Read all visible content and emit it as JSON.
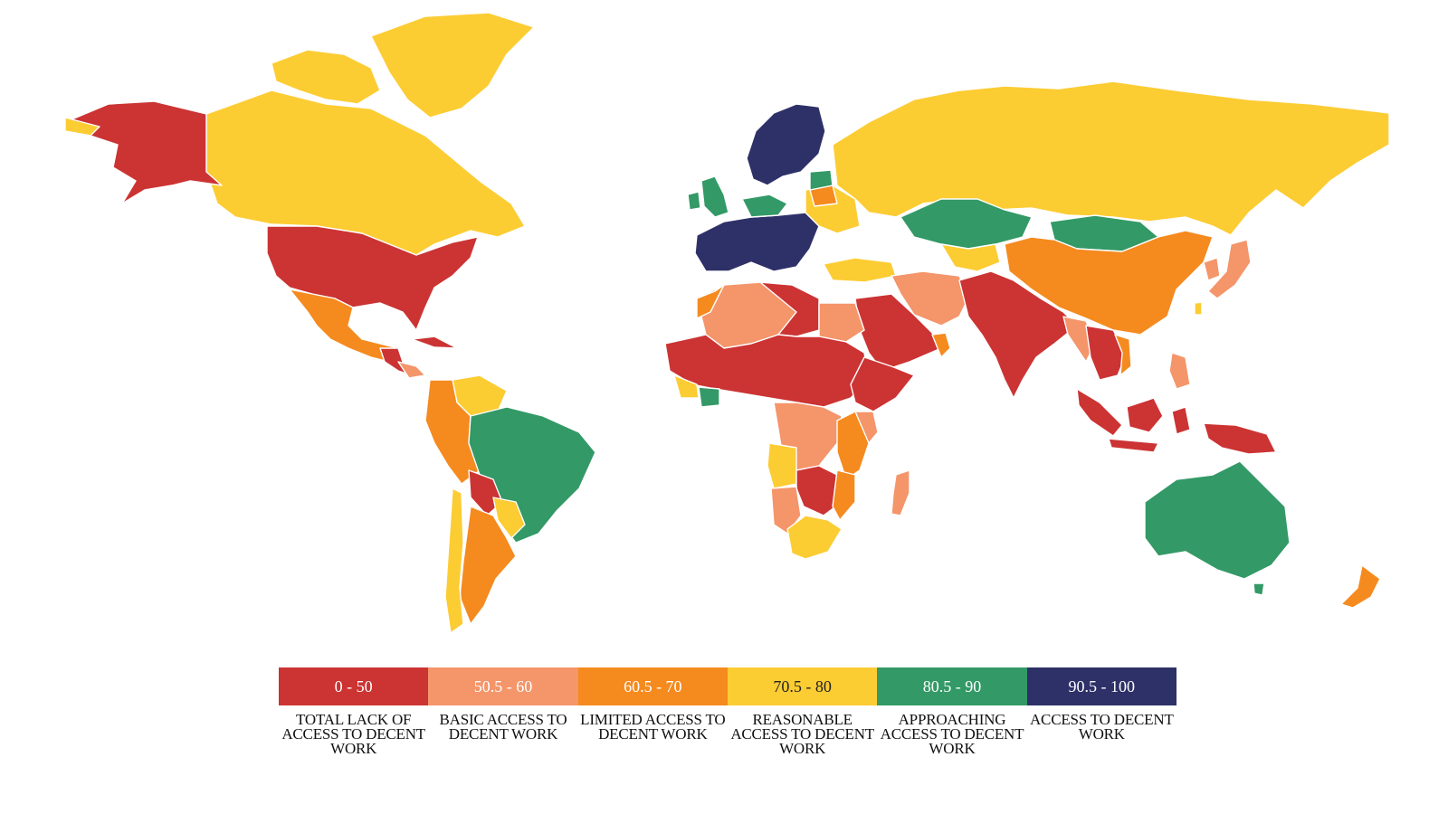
{
  "map": {
    "colors": {
      "c0_50": "#cc3333",
      "c50_60": "#f4956a",
      "c60_70": "#f58a1f",
      "c70_80": "#fccc33",
      "c80_90": "#339966",
      "c90_100": "#2e3068"
    }
  },
  "legend": {
    "bins": [
      {
        "range": "0 - 50",
        "label": "TOTAL LACK OF ACCESS TO DECENT WORK",
        "color": "#cc3333"
      },
      {
        "range": "50.5 - 60",
        "label": "BASIC ACCESS TO DECENT WORK",
        "color": "#f4956a"
      },
      {
        "range": "60.5 - 70",
        "label": "LIMITED ACCESS TO DECENT WORK",
        "color": "#f58a1f"
      },
      {
        "range": "70.5 - 80",
        "label": "REASONABLE ACCESS TO DECENT WORK",
        "color": "#fccc33"
      },
      {
        "range": "80.5 - 90",
        "label": "APPROACHING ACCESS TO DECENT WORK",
        "color": "#339966"
      },
      {
        "range": "90.5 - 100",
        "label": "ACCESS TO DECENT WORK",
        "color": "#2e3068"
      }
    ]
  }
}
